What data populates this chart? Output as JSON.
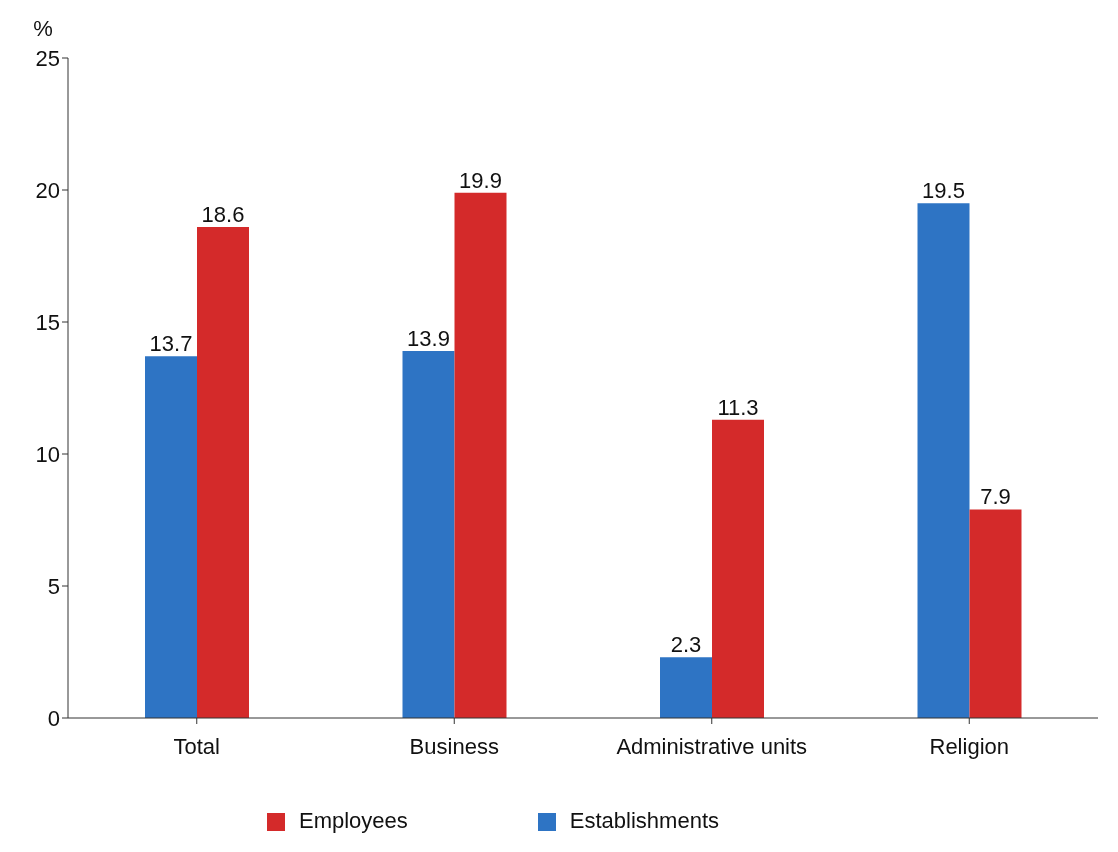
{
  "chart_data": {
    "type": "bar",
    "ylabel": "%",
    "categories": [
      "Total",
      "Business",
      "Administrative units",
      "Religion"
    ],
    "series": [
      {
        "name": "Establishments",
        "color": "#2e74c4",
        "values": [
          13.7,
          13.9,
          2.3,
          19.5
        ]
      },
      {
        "name": "Employees",
        "color": "#d42a2a",
        "values": [
          18.6,
          19.9,
          11.3,
          7.9
        ]
      }
    ],
    "ylim": [
      0,
      25
    ],
    "yticks": [
      0,
      5,
      10,
      15,
      20,
      25
    ],
    "grid": false,
    "legend": "bottom",
    "data_labels": true
  }
}
